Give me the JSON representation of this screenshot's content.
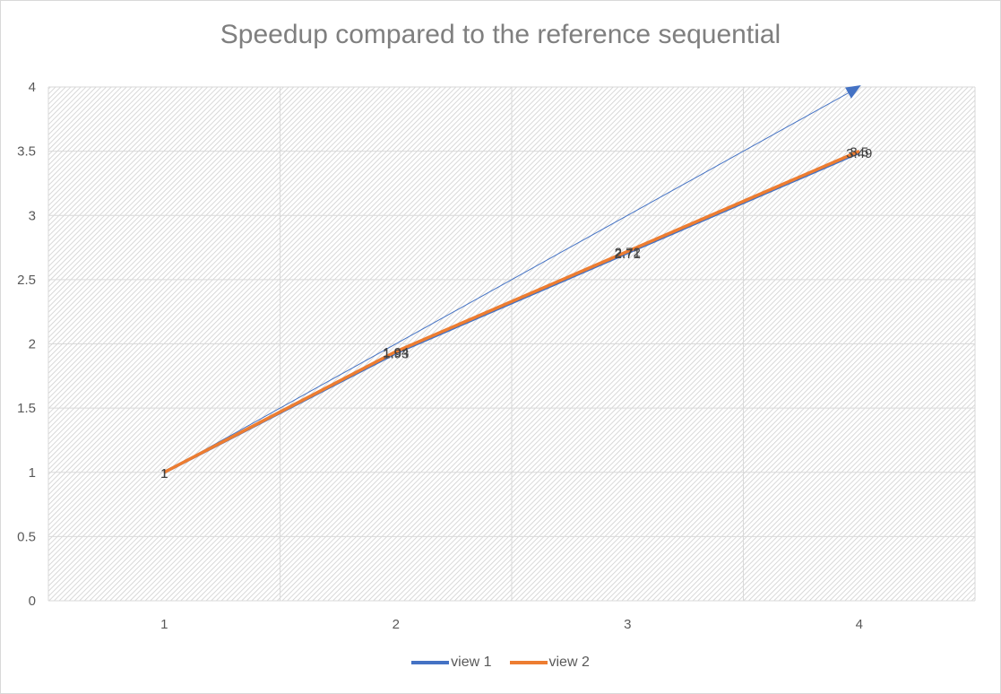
{
  "chart_data": {
    "type": "line",
    "title": "Speedup compared to the reference sequential",
    "xlabel": "",
    "ylabel": "",
    "categories": [
      "1",
      "2",
      "3",
      "4"
    ],
    "ylim": [
      0,
      4
    ],
    "yticks": [
      "0",
      "0.5",
      "1",
      "1.5",
      "2",
      "2.5",
      "3",
      "3.5",
      "4"
    ],
    "grid": true,
    "legend_position": "bottom",
    "series": [
      {
        "name": "view 1",
        "values": [
          1,
          1.93,
          2.71,
          3.49
        ],
        "labels": [
          "1",
          "1.93",
          "2.71",
          "3.49"
        ],
        "color": "#4472c4"
      },
      {
        "name": "view 2",
        "values": [
          1,
          1.94,
          2.72,
          3.5
        ],
        "labels": [
          "1",
          "1.94",
          "2.72",
          "3.5"
        ],
        "color": "#ed7d31"
      }
    ],
    "reference_line": {
      "x": [
        1,
        4
      ],
      "y": [
        1,
        4
      ],
      "color": "#4472c4",
      "arrow": true
    }
  }
}
